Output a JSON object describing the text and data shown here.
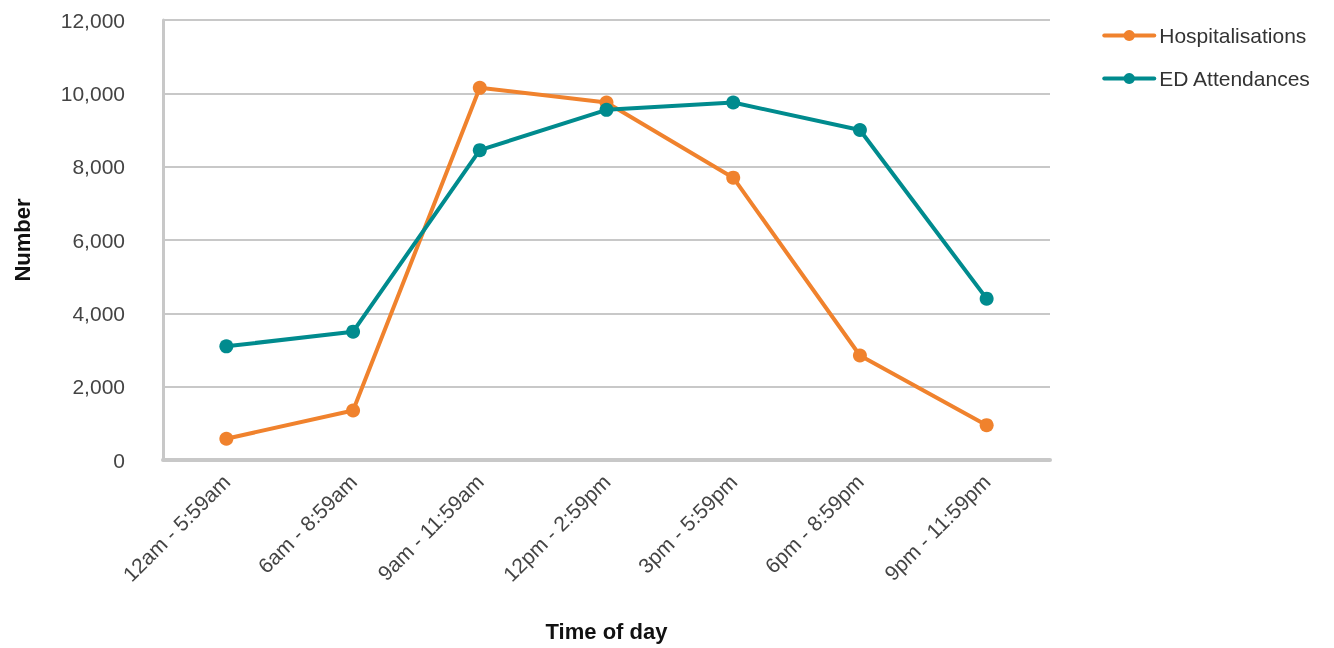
{
  "chart_data": {
    "type": "line",
    "xlabel": "Time of day",
    "ylabel": "Number",
    "categories": [
      "12am - 5:59am",
      "6am - 8:59am",
      "9am - 11:59am",
      "12pm - 2:59pm",
      "3pm - 5:59pm",
      "6pm - 8:59pm",
      "9pm - 11:59pm"
    ],
    "series": [
      {
        "name": "Hospitalisations",
        "color": "#f0822d",
        "values": [
          580,
          1350,
          10150,
          9750,
          7700,
          2850,
          950
        ]
      },
      {
        "name": "ED Attendances",
        "color": "#008b8e",
        "values": [
          3100,
          3500,
          8450,
          9550,
          9750,
          9000,
          4400
        ]
      }
    ],
    "ylim": [
      0,
      12000
    ],
    "yticks": [
      0,
      {
        "value": 2000,
        "label": "2,000"
      },
      {
        "value": 4000,
        "label": "4,000"
      },
      {
        "value": 6000,
        "label": "6,000"
      },
      {
        "value": 8000,
        "label": "8,000"
      },
      {
        "value": 10000,
        "label": "10,000"
      },
      {
        "value": 12000,
        "label": "12,000"
      }
    ],
    "grid": "y",
    "legend": "top right",
    "marker": "circle",
    "line_style": "solid"
  }
}
